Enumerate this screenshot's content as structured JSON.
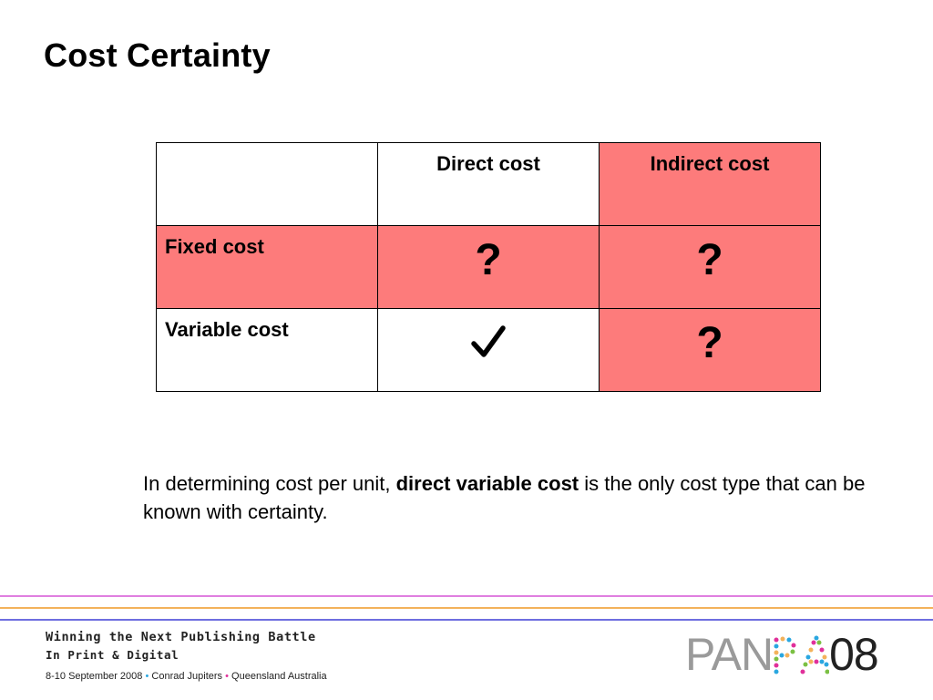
{
  "slide": {
    "title": "Cost Certainty"
  },
  "table": {
    "col_headers": [
      "Direct cost",
      "Indirect cost"
    ],
    "rows": [
      {
        "label": "Fixed cost",
        "direct": "?",
        "indirect": "?"
      },
      {
        "label": "Variable cost",
        "direct": "✓",
        "indirect": "?"
      }
    ]
  },
  "note": {
    "prefix": "In determining cost per unit, ",
    "emphasis": "direct variable cost",
    "suffix": " is the only cost type that can be known with certainty."
  },
  "footer": {
    "line1": "Winning the Next Publishing Battle",
    "line2": "In Print & Digital",
    "line3_parts": [
      "8-10 September 2008",
      "Conrad Jupiters",
      "Queensland Australia"
    ],
    "separator": "•"
  },
  "logo": {
    "part1": "PAN",
    "part2": "PA",
    "part3": "08"
  },
  "colors": {
    "pink_cell": "#fd7b7b",
    "rule_magenta": "#e07fe0",
    "rule_orange": "#f3b25b",
    "rule_blue": "#6e6ee0"
  }
}
